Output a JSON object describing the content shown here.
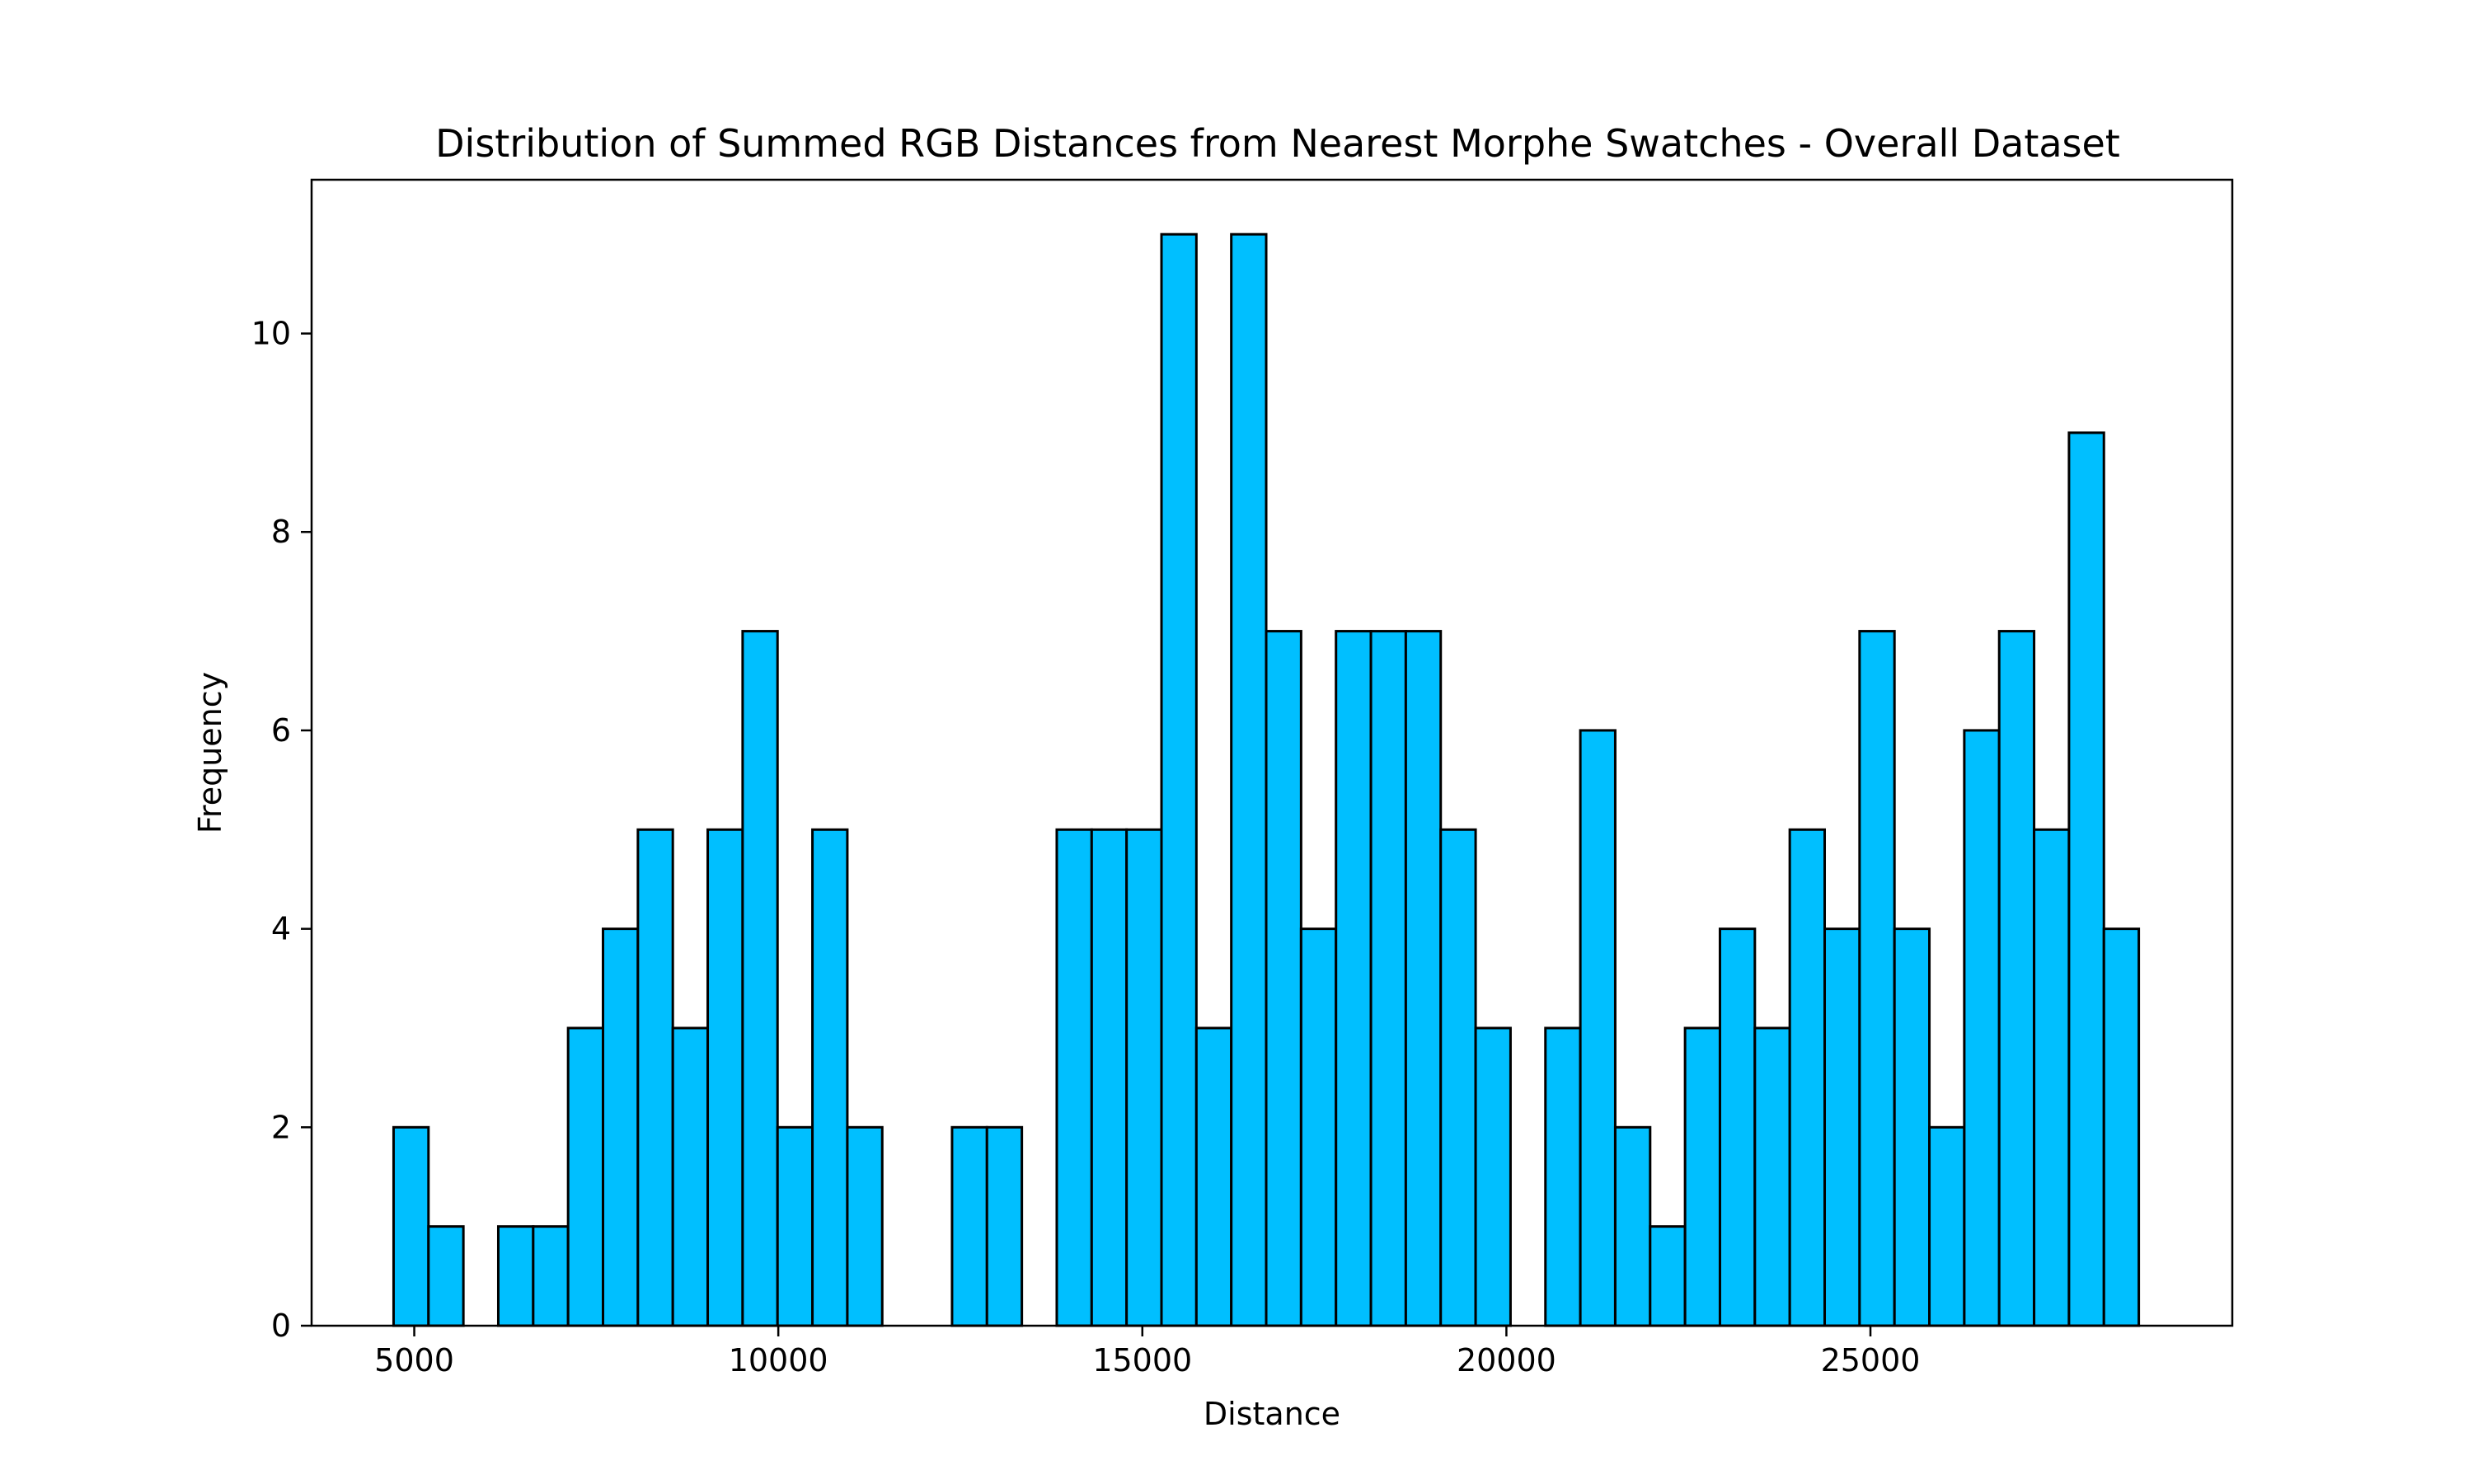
{
  "chart_data": {
    "type": "bar",
    "title": "Distribution of Summed RGB Distances from Nearest Morphe Swatches - Overall Dataset",
    "xlabel": "Distance",
    "ylabel": "Frequency",
    "xlim": [
      3590,
      29970
    ],
    "ylim": [
      0,
      11.55
    ],
    "x_ticks": [
      5000,
      10000,
      15000,
      20000,
      25000
    ],
    "x_tick_labels": [
      "5000",
      "10000",
      "15000",
      "20000",
      "25000"
    ],
    "y_ticks": [
      0,
      2,
      4,
      6,
      8,
      10
    ],
    "y_tick_labels": [
      "0",
      "2",
      "4",
      "6",
      "8",
      "10"
    ],
    "grid": false,
    "bar_color": "#00BFFF",
    "edge_color": "#000000",
    "bin_start": 4716,
    "bin_width": 479.4,
    "values": [
      2,
      1,
      0,
      1,
      1,
      3,
      4,
      5,
      3,
      5,
      7,
      2,
      5,
      2,
      0,
      0,
      2,
      2,
      0,
      5,
      5,
      5,
      11,
      3,
      11,
      7,
      4,
      7,
      7,
      7,
      5,
      3,
      0,
      3,
      6,
      2,
      1,
      3,
      4,
      3,
      5,
      4,
      7,
      4,
      2,
      6,
      7,
      5,
      9,
      4
    ]
  }
}
